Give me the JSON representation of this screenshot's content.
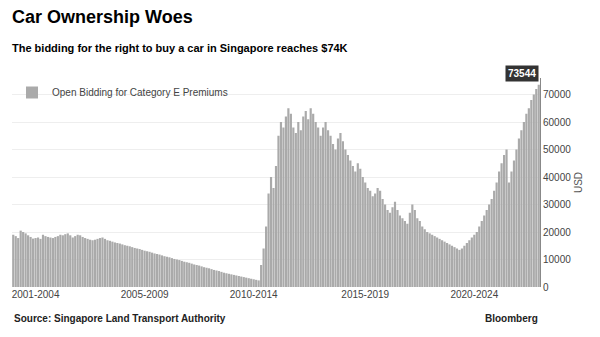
{
  "chart_data": {
    "type": "bar",
    "title": "Car Ownership Woes",
    "subtitle": "The bidding for the right to buy a car in Singapore reaches $74K",
    "ylabel": "USD",
    "source": "Source: Singapore Land Transport Authority",
    "credit": "Bloomberg",
    "annotations": [
      "73544"
    ],
    "categories": [
      null,
      null,
      null,
      null,
      null,
      null,
      null,
      null,
      null,
      "2001-2004",
      null,
      null,
      null,
      null,
      null,
      null,
      null,
      null,
      null,
      null,
      null,
      null,
      null,
      null,
      null,
      null,
      null,
      null,
      null,
      null,
      null,
      null,
      null,
      null,
      null,
      null,
      null,
      null,
      null,
      null,
      null,
      null,
      null,
      null,
      null,
      null,
      null,
      null,
      null,
      null,
      null,
      null,
      null,
      "2005-2009",
      null,
      null,
      null,
      null,
      null,
      null,
      null,
      null,
      null,
      null,
      null,
      null,
      null,
      null,
      null,
      null,
      null,
      null,
      null,
      null,
      null,
      null,
      null,
      null,
      null,
      null,
      null,
      null,
      null,
      null,
      null,
      null,
      null,
      null,
      null,
      null,
      null,
      null,
      null,
      null,
      null,
      null,
      null,
      "2010-2014",
      null,
      null,
      null,
      null,
      null,
      null,
      null,
      null,
      null,
      null,
      null,
      null,
      null,
      null,
      null,
      null,
      null,
      null,
      null,
      null,
      null,
      null,
      null,
      null,
      null,
      null,
      null,
      null,
      null,
      null,
      null,
      null,
      null,
      null,
      null,
      null,
      null,
      null,
      null,
      null,
      null,
      null,
      null,
      null,
      "2015-2019",
      null,
      null,
      null,
      null,
      null,
      null,
      null,
      null,
      null,
      null,
      null,
      null,
      null,
      null,
      null,
      null,
      null,
      null,
      null,
      null,
      null,
      null,
      null,
      null,
      null,
      null,
      null,
      null,
      null,
      null,
      null,
      null,
      null,
      null,
      null,
      null,
      null,
      null,
      null,
      null,
      null,
      null,
      null,
      "2020-2024",
      null,
      null,
      null,
      null,
      null,
      null,
      null,
      null,
      null,
      null,
      null,
      null,
      null,
      null,
      null,
      null,
      null,
      null,
      null,
      null,
      null,
      null,
      null,
      null,
      null,
      null
    ],
    "series": [
      {
        "name": "Open Bidding for Category E Premiums",
        "color": "#aaaaaa",
        "values": [
          19000,
          18500,
          17800,
          20500,
          20000,
          19500,
          18800,
          18200,
          17600,
          17800,
          18000,
          17500,
          19000,
          18500,
          18200,
          18000,
          17800,
          18200,
          18500,
          19000,
          18800,
          19200,
          19500,
          18800,
          18000,
          18500,
          19000,
          18800,
          18200,
          17800,
          17500,
          17200,
          17000,
          17200,
          17500,
          17800,
          18000,
          17500,
          17000,
          16800,
          16500,
          16200,
          16000,
          15800,
          15500,
          15200,
          15000,
          14800,
          14500,
          14200,
          14000,
          13800,
          13500,
          13200,
          13000,
          12800,
          12500,
          12200,
          12000,
          11800,
          11500,
          11200,
          11000,
          10800,
          10500,
          10200,
          10000,
          9800,
          9500,
          9200,
          9000,
          8800,
          8500,
          8200,
          8000,
          7800,
          7500,
          7200,
          7000,
          6800,
          6500,
          6200,
          6000,
          5800,
          5500,
          5200,
          5000,
          4800,
          4600,
          4400,
          4200,
          4000,
          3800,
          3600,
          3400,
          3200,
          3000,
          2800,
          2600,
          2400,
          8000,
          14000,
          22000,
          34000,
          40000,
          36000,
          44000,
          55000,
          60000,
          58000,
          62000,
          65000,
          63000,
          58000,
          56000,
          60000,
          57000,
          62000,
          64000,
          61000,
          65000,
          63000,
          60000,
          58000,
          55000,
          58000,
          60000,
          57000,
          55000,
          52000,
          50000,
          54000,
          56000,
          53000,
          50000,
          48000,
          46000,
          44000,
          42000,
          45000,
          43000,
          40000,
          38000,
          36000,
          35000,
          33000,
          34000,
          36000,
          35000,
          32000,
          30000,
          28000,
          27000,
          29000,
          31000,
          28000,
          26000,
          25000,
          24000,
          23000,
          27000,
          30000,
          28000,
          25000,
          24000,
          22000,
          21000,
          20000,
          19500,
          19000,
          18500,
          18000,
          17500,
          17000,
          16500,
          16000,
          15500,
          15000,
          14500,
          14000,
          13500,
          14000,
          15000,
          16000,
          17000,
          18000,
          19000,
          20000,
          22000,
          24000,
          26000,
          28000,
          30000,
          32000,
          35000,
          38000,
          42000,
          45000,
          48000,
          50000,
          38000,
          42000,
          46000,
          50000,
          54000,
          57000,
          60000,
          63000,
          65000,
          68000,
          70000,
          72000,
          73544
        ]
      }
    ],
    "ylim": [
      0,
      76000
    ],
    "yticks": [
      0,
      10000,
      20000,
      30000,
      40000,
      50000,
      60000,
      70000
    ],
    "grid": true,
    "legend": "upper left"
  }
}
